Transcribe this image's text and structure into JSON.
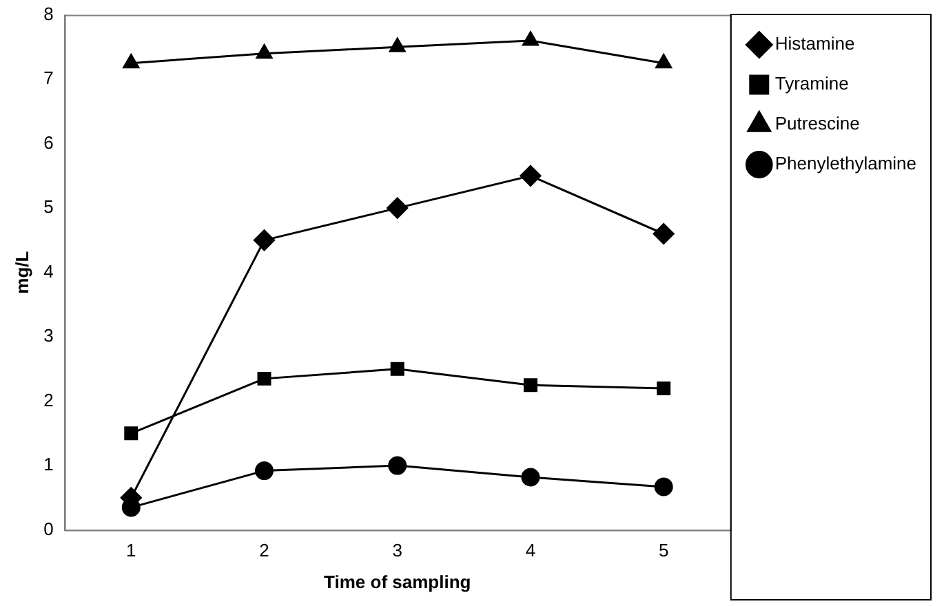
{
  "chart_data": {
    "type": "line",
    "xlabel": "Time of sampling",
    "ylabel": "mg/L",
    "categories": [
      "1",
      "2",
      "3",
      "4",
      "5"
    ],
    "ylim": [
      0,
      8
    ],
    "yticks": [
      0,
      1,
      2,
      3,
      4,
      5,
      6,
      7,
      8
    ],
    "grid": false,
    "legend": "right",
    "line_style": "solid",
    "series": [
      {
        "name": "Histamine",
        "color": "#000000",
        "marker": "diamond",
        "values": [
          0.5,
          4.5,
          5.0,
          5.5,
          4.6
        ]
      },
      {
        "name": "Tyramine",
        "color": "#000000",
        "marker": "square",
        "values": [
          1.5,
          2.35,
          2.5,
          2.25,
          2.2
        ]
      },
      {
        "name": "Putrescine",
        "color": "#000000",
        "marker": "triangle",
        "values": [
          7.25,
          7.4,
          7.5,
          7.6,
          7.25
        ]
      },
      {
        "name": "Phenylethylamine",
        "color": "#000000",
        "marker": "circle",
        "values": [
          0.35,
          0.92,
          1.0,
          0.82,
          0.67
        ]
      }
    ]
  }
}
